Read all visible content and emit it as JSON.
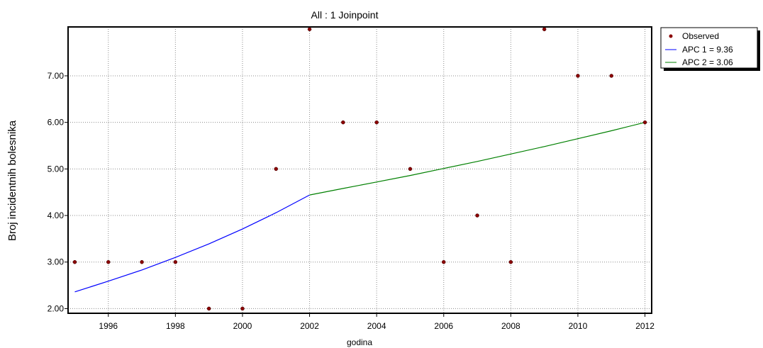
{
  "chart_data": {
    "type": "line",
    "title": "All : 1 Joinpoint",
    "xlabel": "godina",
    "ylabel": "Broj incidentnih bolesnika",
    "xlim": [
      1994.8,
      2012.2
    ],
    "ylim": [
      1.9,
      8.05
    ],
    "x_ticks": [
      1996,
      1998,
      2000,
      2002,
      2004,
      2006,
      2008,
      2010,
      2012
    ],
    "x_tick_labels": [
      "1996",
      "1998",
      "2000",
      "2002",
      "2004",
      "2006",
      "2008",
      "2010",
      "2012"
    ],
    "y_ticks": [
      2,
      3,
      4,
      5,
      6,
      7
    ],
    "y_tick_labels": [
      "2.00",
      "3.00",
      "4.00",
      "5.00",
      "6.00",
      "7.00"
    ],
    "grid": true,
    "legend_position": "top-right outside",
    "observed": {
      "name": "Observed",
      "color": "#8b0000",
      "x": [
        1995,
        1996,
        1997,
        1998,
        1999,
        2000,
        2001,
        2002,
        2003,
        2004,
        2005,
        2006,
        2007,
        2008,
        2009,
        2010,
        2011,
        2012
      ],
      "y": [
        3,
        3,
        3,
        3,
        2,
        2,
        5,
        8,
        6,
        6,
        5,
        3,
        4,
        3,
        8,
        7,
        7,
        6
      ]
    },
    "series": [
      {
        "name": "APC 1 = 9.36",
        "color": "#0000ff",
        "x": [
          1995,
          1996,
          1997,
          1998,
          1999,
          2000,
          2001,
          2002
        ],
        "y": [
          2.36,
          2.59,
          2.83,
          3.1,
          3.39,
          3.71,
          4.06,
          4.44
        ]
      },
      {
        "name": "APC 2 = 3.06",
        "color": "#008000",
        "x": [
          2002,
          2003,
          2004,
          2005,
          2006,
          2007,
          2008,
          2009,
          2010,
          2011,
          2012
        ],
        "y": [
          4.44,
          4.58,
          4.72,
          4.86,
          5.01,
          5.16,
          5.32,
          5.48,
          5.65,
          5.82,
          6.0
        ]
      }
    ]
  }
}
